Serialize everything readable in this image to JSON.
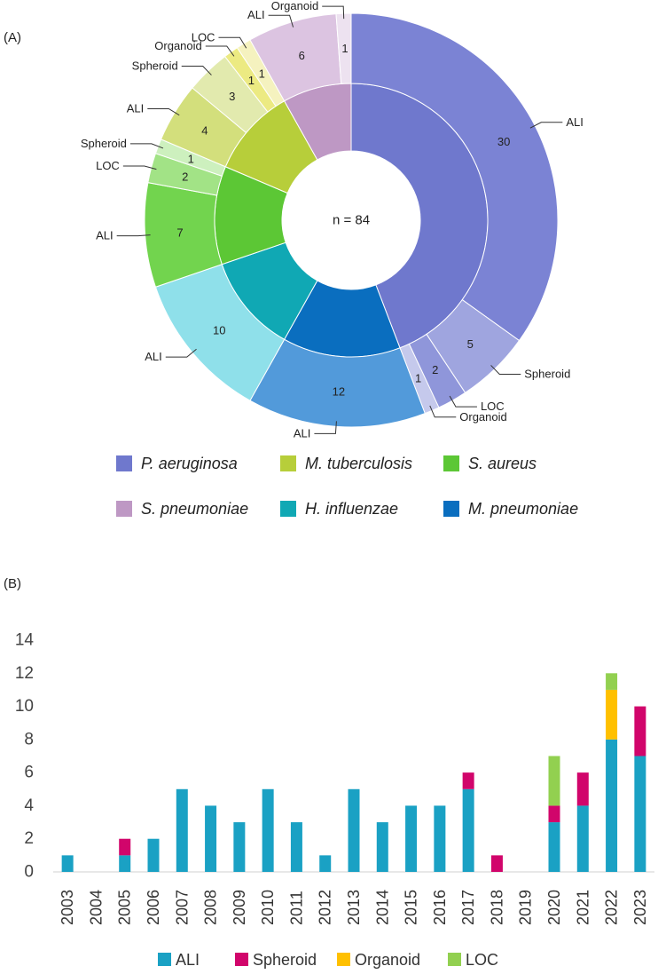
{
  "panel_a_label": "(A)",
  "panel_b_label": "(B)",
  "chart_data": [
    {
      "type": "pie",
      "subtype": "sunburst",
      "center_label": "n = 84",
      "inner": [
        {
          "name": "P. aeruginosa",
          "value": 38,
          "color": "#6F78CD"
        },
        {
          "name": "M. pneumoniae",
          "value": 12,
          "color": "#0A6EBF"
        },
        {
          "name": "H. influenzae",
          "value": 10,
          "color": "#10A8B4"
        },
        {
          "name": "S. aureus",
          "value": 10,
          "color": "#5CC735"
        },
        {
          "name": "M. tuberculosis",
          "value": 9,
          "color": "#B7CE3A"
        },
        {
          "name": "S. pneumoniae",
          "value": 7,
          "color": "#BE98C4"
        }
      ],
      "outer": [
        {
          "parent": "P. aeruginosa",
          "model": "ALI",
          "value": 30,
          "color": "#7B83D4"
        },
        {
          "parent": "P. aeruginosa",
          "model": "Spheroid",
          "value": 5,
          "color": "#9FA5DF"
        },
        {
          "parent": "P. aeruginosa",
          "model": "LOC",
          "value": 2,
          "color": "#8F96DA"
        },
        {
          "parent": "P. aeruginosa",
          "model": "Organoid",
          "value": 1,
          "color": "#C5C9EC"
        },
        {
          "parent": "M. pneumoniae",
          "model": "ALI",
          "value": 12,
          "color": "#529ADA"
        },
        {
          "parent": "H. influenzae",
          "model": "ALI",
          "value": 10,
          "color": "#8FE0EA"
        },
        {
          "parent": "S. aureus",
          "model": "ALI",
          "value": 7,
          "color": "#72D44E"
        },
        {
          "parent": "S. aureus",
          "model": "LOC",
          "value": 2,
          "color": "#A2E386"
        },
        {
          "parent": "S. aureus",
          "model": "Spheroid",
          "value": 1,
          "color": "#CDF0BE"
        },
        {
          "parent": "M. tuberculosis",
          "model": "ALI",
          "value": 4,
          "color": "#D3DF7C"
        },
        {
          "parent": "M. tuberculosis",
          "model": "Spheroid",
          "value": 3,
          "color": "#E2EAAE"
        },
        {
          "parent": "M. tuberculosis",
          "model": "Organoid",
          "value": 1,
          "color": "#ECEA82"
        },
        {
          "parent": "M. tuberculosis",
          "model": "LOC",
          "value": 1,
          "color": "#F5F2BF"
        },
        {
          "parent": "S. pneumoniae",
          "model": "ALI",
          "value": 6,
          "color": "#DCC4E1"
        },
        {
          "parent": "S. pneumoniae",
          "model": "Organoid",
          "value": 1,
          "color": "#EDE2F0"
        }
      ],
      "legend": [
        {
          "name": "P. aeruginosa",
          "color": "#6F78CD"
        },
        {
          "name": "M. tuberculosis",
          "color": "#B7CE3A"
        },
        {
          "name": "S. aureus",
          "color": "#5CC735"
        },
        {
          "name": "S. pneumoniae",
          "color": "#BE98C4"
        },
        {
          "name": "H. influenzae",
          "color": "#10A8B4"
        },
        {
          "name": "M. pneumoniae",
          "color": "#0A6EBF"
        }
      ]
    },
    {
      "type": "bar",
      "stacked": true,
      "categories": [
        "2003",
        "2004",
        "2005",
        "2006",
        "2007",
        "2008",
        "2009",
        "2010",
        "2011",
        "2012",
        "2013",
        "2014",
        "2015",
        "2016",
        "2017",
        "2018",
        "2019",
        "2020",
        "2021",
        "2022",
        "2023"
      ],
      "series": [
        {
          "name": "ALI",
          "color": "#1AA1C4",
          "values": [
            1,
            0,
            1,
            2,
            5,
            4,
            3,
            5,
            3,
            1,
            5,
            3,
            4,
            4,
            5,
            0,
            0,
            3,
            4,
            8,
            7
          ]
        },
        {
          "name": "Spheroid",
          "color": "#D1056B",
          "values": [
            0,
            0,
            1,
            0,
            0,
            0,
            0,
            0,
            0,
            0,
            0,
            0,
            0,
            0,
            1,
            1,
            0,
            1,
            2,
            0,
            3
          ]
        },
        {
          "name": "Organoid",
          "color": "#FFC000",
          "values": [
            0,
            0,
            0,
            0,
            0,
            0,
            0,
            0,
            0,
            0,
            0,
            0,
            0,
            0,
            0,
            0,
            0,
            0,
            0,
            3,
            0
          ]
        },
        {
          "name": "LOC",
          "color": "#92D050",
          "values": [
            0,
            0,
            0,
            0,
            0,
            0,
            0,
            0,
            0,
            0,
            0,
            0,
            0,
            0,
            0,
            0,
            0,
            3,
            0,
            1,
            0
          ]
        }
      ],
      "y_ticks": [
        0,
        2,
        4,
        6,
        8,
        10,
        12,
        14
      ],
      "ylim": [
        0,
        14
      ],
      "title": "",
      "xlabel": "",
      "ylabel": "",
      "legend_position": "bottom"
    }
  ]
}
